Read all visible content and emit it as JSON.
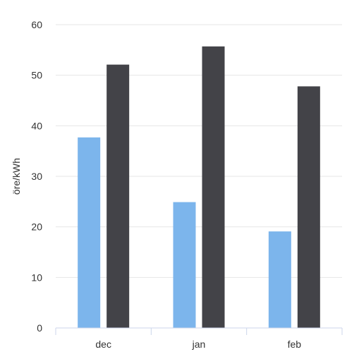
{
  "chart_data": {
    "type": "bar",
    "categories": [
      "dec",
      "jan",
      "feb"
    ],
    "series": [
      {
        "values": [
          37.7,
          24.9,
          19.1
        ],
        "color": "#7cb5ec"
      },
      {
        "values": [
          52.1,
          55.7,
          47.8
        ],
        "color": "#434348"
      }
    ],
    "title": "",
    "xlabel": "",
    "ylabel": "öre/kWh",
    "ylim": [
      0,
      60
    ],
    "yticks": [
      0,
      10,
      20,
      30,
      40,
      50,
      60
    ],
    "grid": true,
    "legend": "none",
    "gridline_color": "#e6e6e6",
    "axis_color": "#ccd6eb"
  }
}
